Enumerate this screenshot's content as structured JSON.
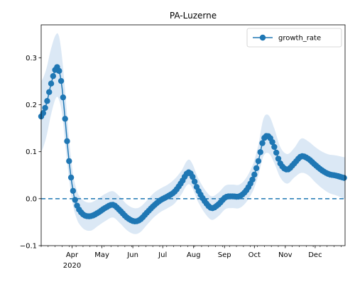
{
  "chart_data": {
    "type": "line",
    "title": "PA-Luzerne",
    "xlabel": "",
    "ylabel": "",
    "xlim": [
      "2020-03-01",
      "2020-12-31"
    ],
    "ylim": [
      -0.1,
      0.37
    ],
    "x_ticks": [
      {
        "date": "2020-04-01",
        "label": "Apr"
      },
      {
        "date": "2020-05-01",
        "label": "May"
      },
      {
        "date": "2020-06-01",
        "label": "Jun"
      },
      {
        "date": "2020-07-01",
        "label": "Jul"
      },
      {
        "date": "2020-08-01",
        "label": "Aug"
      },
      {
        "date": "2020-09-01",
        "label": "Sep"
      },
      {
        "date": "2020-10-01",
        "label": "Oct"
      },
      {
        "date": "2020-11-01",
        "label": "Nov"
      },
      {
        "date": "2020-12-01",
        "label": "Dec"
      }
    ],
    "x_year_label": "2020",
    "y_ticks": [
      -0.1,
      0.0,
      0.1,
      0.2,
      0.3
    ],
    "y_tick_labels": [
      "−0.1",
      "0.0",
      "0.1",
      "0.2",
      "0.3"
    ],
    "reference_line": {
      "y": 0.0,
      "style": "dashed",
      "color": "#1f77b4"
    },
    "legend": {
      "position": "top-right",
      "entries": [
        "growth_rate"
      ]
    },
    "series": [
      {
        "name": "growth_rate",
        "color": "#1f77b4",
        "band_color": "#dbe8f5",
        "points": [
          {
            "x": "2020-03-01",
            "y": 0.175,
            "lo": 0.1,
            "hi": 0.25
          },
          {
            "x": "2020-03-06",
            "y": 0.2,
            "lo": 0.13,
            "hi": 0.275
          },
          {
            "x": "2020-03-11",
            "y": 0.245,
            "lo": 0.18,
            "hi": 0.32
          },
          {
            "x": "2020-03-16",
            "y": 0.278,
            "lo": 0.215,
            "hi": 0.35
          },
          {
            "x": "2020-03-19",
            "y": 0.272,
            "lo": 0.21,
            "hi": 0.345
          },
          {
            "x": "2020-03-22",
            "y": 0.235,
            "lo": 0.18,
            "hi": 0.3
          },
          {
            "x": "2020-03-25",
            "y": 0.17,
            "lo": 0.12,
            "hi": 0.23
          },
          {
            "x": "2020-03-28",
            "y": 0.1,
            "lo": 0.06,
            "hi": 0.15
          },
          {
            "x": "2020-03-31",
            "y": 0.045,
            "lo": 0.01,
            "hi": 0.085
          },
          {
            "x": "2020-04-03",
            "y": 0.005,
            "lo": -0.025,
            "hi": 0.04
          },
          {
            "x": "2020-04-07",
            "y": -0.02,
            "lo": -0.05,
            "hi": 0.01
          },
          {
            "x": "2020-04-13",
            "y": -0.035,
            "lo": -0.065,
            "hi": -0.005
          },
          {
            "x": "2020-04-20",
            "y": -0.037,
            "lo": -0.068,
            "hi": -0.008
          },
          {
            "x": "2020-04-27",
            "y": -0.03,
            "lo": -0.058,
            "hi": 0.0
          },
          {
            "x": "2020-05-04",
            "y": -0.02,
            "lo": -0.048,
            "hi": 0.01
          },
          {
            "x": "2020-05-12",
            "y": -0.013,
            "lo": -0.04,
            "hi": 0.016
          },
          {
            "x": "2020-05-19",
            "y": -0.025,
            "lo": -0.052,
            "hi": 0.004
          },
          {
            "x": "2020-05-26",
            "y": -0.04,
            "lo": -0.067,
            "hi": -0.012
          },
          {
            "x": "2020-06-02",
            "y": -0.048,
            "lo": -0.075,
            "hi": -0.02
          },
          {
            "x": "2020-06-08",
            "y": -0.045,
            "lo": -0.072,
            "hi": -0.018
          },
          {
            "x": "2020-06-15",
            "y": -0.03,
            "lo": -0.056,
            "hi": -0.004
          },
          {
            "x": "2020-06-22",
            "y": -0.015,
            "lo": -0.04,
            "hi": 0.012
          },
          {
            "x": "2020-06-29",
            "y": -0.003,
            "lo": -0.028,
            "hi": 0.022
          },
          {
            "x": "2020-07-06",
            "y": 0.005,
            "lo": -0.02,
            "hi": 0.03
          },
          {
            "x": "2020-07-13",
            "y": 0.015,
            "lo": -0.01,
            "hi": 0.042
          },
          {
            "x": "2020-07-20",
            "y": 0.035,
            "lo": 0.01,
            "hi": 0.06
          },
          {
            "x": "2020-07-26",
            "y": 0.055,
            "lo": 0.03,
            "hi": 0.082
          },
          {
            "x": "2020-07-30",
            "y": 0.05,
            "lo": 0.025,
            "hi": 0.077
          },
          {
            "x": "2020-08-05",
            "y": 0.02,
            "lo": -0.005,
            "hi": 0.046
          },
          {
            "x": "2020-08-12",
            "y": -0.005,
            "lo": -0.03,
            "hi": 0.02
          },
          {
            "x": "2020-08-19",
            "y": -0.02,
            "lo": -0.045,
            "hi": 0.005
          },
          {
            "x": "2020-08-26",
            "y": -0.012,
            "lo": -0.037,
            "hi": 0.013
          },
          {
            "x": "2020-09-02",
            "y": 0.003,
            "lo": -0.022,
            "hi": 0.028
          },
          {
            "x": "2020-09-09",
            "y": 0.005,
            "lo": -0.02,
            "hi": 0.03
          },
          {
            "x": "2020-09-16",
            "y": 0.005,
            "lo": -0.02,
            "hi": 0.03
          },
          {
            "x": "2020-09-23",
            "y": 0.018,
            "lo": -0.007,
            "hi": 0.045
          },
          {
            "x": "2020-09-30",
            "y": 0.045,
            "lo": 0.018,
            "hi": 0.075
          },
          {
            "x": "2020-10-05",
            "y": 0.08,
            "lo": 0.05,
            "hi": 0.115
          },
          {
            "x": "2020-10-10",
            "y": 0.125,
            "lo": 0.09,
            "hi": 0.17
          },
          {
            "x": "2020-10-15",
            "y": 0.133,
            "lo": 0.097,
            "hi": 0.178
          },
          {
            "x": "2020-10-20",
            "y": 0.115,
            "lo": 0.08,
            "hi": 0.155
          },
          {
            "x": "2020-10-27",
            "y": 0.075,
            "lo": 0.045,
            "hi": 0.11
          },
          {
            "x": "2020-11-03",
            "y": 0.062,
            "lo": 0.032,
            "hi": 0.095
          },
          {
            "x": "2020-11-10",
            "y": 0.075,
            "lo": 0.045,
            "hi": 0.108
          },
          {
            "x": "2020-11-17",
            "y": 0.09,
            "lo": 0.055,
            "hi": 0.128
          },
          {
            "x": "2020-11-24",
            "y": 0.085,
            "lo": 0.05,
            "hi": 0.122
          },
          {
            "x": "2020-12-01",
            "y": 0.072,
            "lo": 0.035,
            "hi": 0.11
          },
          {
            "x": "2020-12-08",
            "y": 0.06,
            "lo": 0.022,
            "hi": 0.1
          },
          {
            "x": "2020-12-15",
            "y": 0.052,
            "lo": 0.012,
            "hi": 0.094
          },
          {
            "x": "2020-12-22",
            "y": 0.049,
            "lo": 0.007,
            "hi": 0.092
          },
          {
            "x": "2020-12-31",
            "y": 0.044,
            "lo": 0.0,
            "hi": 0.088
          }
        ]
      }
    ]
  }
}
